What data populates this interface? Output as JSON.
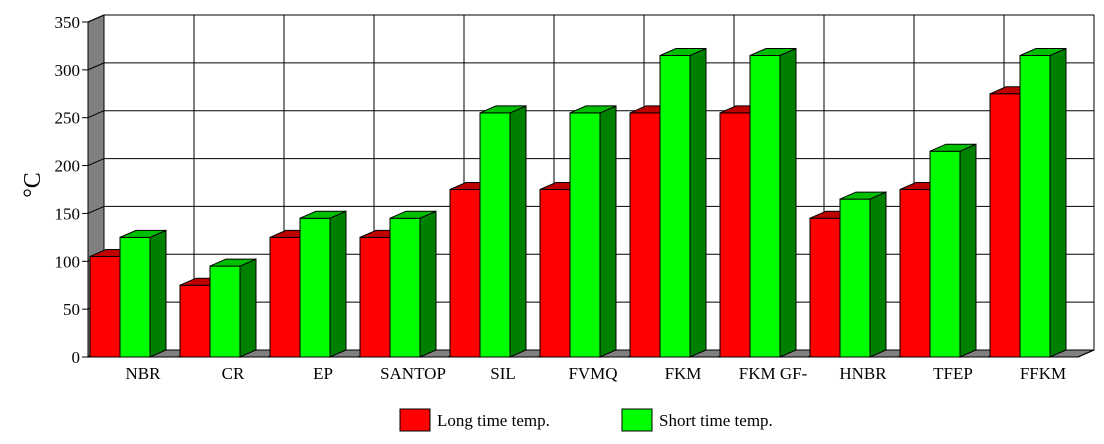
{
  "chart_data": {
    "type": "bar",
    "categories": [
      "NBR",
      "CR",
      "EP",
      "SANTOP",
      "SIL",
      "FVMQ",
      "FKM",
      "FKM GF-",
      "HNBR",
      "TFEP",
      "FFKM"
    ],
    "series": [
      {
        "name": "Long time temp.",
        "values": [
          105,
          75,
          125,
          125,
          175,
          175,
          255,
          255,
          145,
          175,
          275
        ],
        "color": "#ff0000"
      },
      {
        "name": "Short time temp.",
        "values": [
          125,
          95,
          145,
          145,
          255,
          255,
          315,
          315,
          165,
          215,
          315
        ],
        "color": "#00ff00"
      }
    ],
    "ylabel": "°C",
    "xlabel": "",
    "title": "",
    "ylim": [
      0,
      350
    ],
    "yticks": [
      0,
      50,
      100,
      150,
      200,
      250,
      300,
      350
    ],
    "grid": true,
    "legend_position": "bottom-center",
    "three_d": true
  }
}
